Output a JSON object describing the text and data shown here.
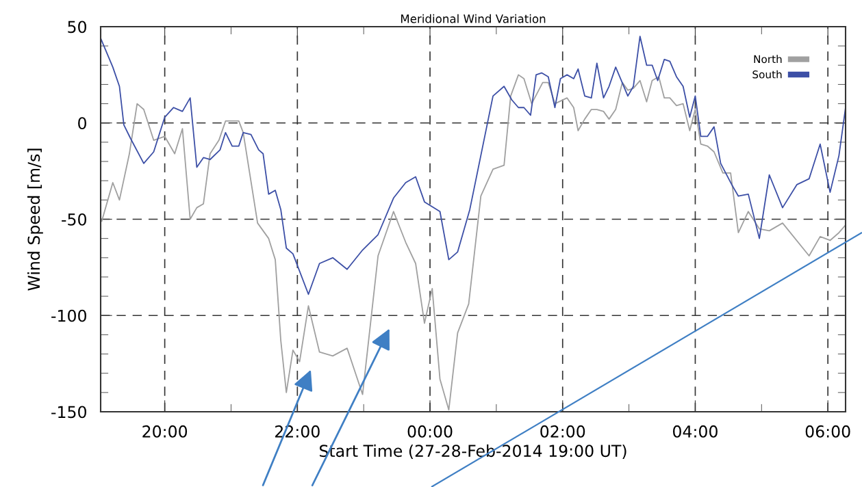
{
  "chart_data": {
    "type": "line",
    "title": "Meridional Wind Variation",
    "xlabel": "Start Time (27-28-Feb-2014 19:00 UT)",
    "ylabel": "Wind Speed [m/s]",
    "xlim": [
      "2014-02-27T19:02",
      "2014-02-28T06:16"
    ],
    "ylim": [
      -150,
      50
    ],
    "xticks": [
      {
        "value": "2014-02-27T20:00",
        "label": "20:00"
      },
      {
        "value": "2014-02-27T21:00",
        "label": null
      },
      {
        "value": "2014-02-27T22:00",
        "label": "22:00"
      },
      {
        "value": "2014-02-27T23:00",
        "label": null
      },
      {
        "value": "2014-02-28T00:00",
        "label": "00:00"
      },
      {
        "value": "2014-02-28T01:00",
        "label": null
      },
      {
        "value": "2014-02-28T02:00",
        "label": "02:00"
      },
      {
        "value": "2014-02-28T03:00",
        "label": null
      },
      {
        "value": "2014-02-28T04:00",
        "label": "04:00"
      },
      {
        "value": "2014-02-28T05:00",
        "label": null
      },
      {
        "value": "2014-02-28T06:00",
        "label": "06:00"
      }
    ],
    "yticks": [
      -150,
      {
        "value": -140,
        "label": null
      },
      {
        "value": -130,
        "label": null
      },
      {
        "value": -120,
        "label": null
      },
      {
        "value": -110,
        "label": null
      },
      -100,
      {
        "value": -90,
        "label": null
      },
      {
        "value": -80,
        "label": null
      },
      {
        "value": -70,
        "label": null
      },
      {
        "value": -60,
        "label": null
      },
      -50,
      {
        "value": -40,
        "label": null
      },
      {
        "value": -30,
        "label": null
      },
      {
        "value": -20,
        "label": null
      },
      {
        "value": -10,
        "label": null
      },
      0,
      {
        "value": 10,
        "label": null
      },
      {
        "value": 20,
        "label": null
      },
      {
        "value": 30,
        "label": null
      },
      {
        "value": 40,
        "label": null
      },
      50
    ],
    "grid": true,
    "legend": "top right",
    "marker": "none",
    "line_style": "solid",
    "series": [
      {
        "name": "North",
        "color": "#a0a0a0",
        "x": [
          "2014-02-27T19:03",
          "2014-02-27T19:13",
          "2014-02-27T19:19",
          "2014-02-27T19:28",
          "2014-02-27T19:35",
          "2014-02-27T19:41",
          "2014-02-27T19:50",
          "2014-02-27T20:00",
          "2014-02-27T20:09",
          "2014-02-27T20:16",
          "2014-02-27T20:23",
          "2014-02-27T20:29",
          "2014-02-27T20:35",
          "2014-02-27T20:41",
          "2014-02-27T20:49",
          "2014-02-27T20:55",
          "2014-02-27T21:01",
          "2014-02-27T21:07",
          "2014-02-27T21:11",
          "2014-02-27T21:24",
          "2014-02-27T21:34",
          "2014-02-27T21:40",
          "2014-02-27T21:45",
          "2014-02-27T21:50",
          "2014-02-27T21:56",
          "2014-02-27T22:02",
          "2014-02-27T22:10",
          "2014-02-27T22:20",
          "2014-02-27T22:32",
          "2014-02-27T22:45",
          "2014-02-27T22:59",
          "2014-02-27T23:13",
          "2014-02-27T23:27",
          "2014-02-27T23:38",
          "2014-02-27T23:47",
          "2014-02-27T23:55",
          "2014-02-28T00:02",
          "2014-02-28T00:09",
          "2014-02-28T00:17",
          "2014-02-28T00:25",
          "2014-02-28T00:35",
          "2014-02-28T00:46",
          "2014-02-28T00:57",
          "2014-02-28T01:07",
          "2014-02-28T01:13",
          "2014-02-28T01:20",
          "2014-02-28T01:25",
          "2014-02-28T01:32",
          "2014-02-28T01:42",
          "2014-02-28T01:47",
          "2014-02-28T01:53",
          "2014-02-28T02:04",
          "2014-02-28T02:10",
          "2014-02-28T02:14",
          "2014-02-28T02:20",
          "2014-02-28T02:26",
          "2014-02-28T02:31",
          "2014-02-28T02:37",
          "2014-02-28T02:42",
          "2014-02-28T02:48",
          "2014-02-28T02:54",
          "2014-02-28T02:59",
          "2014-02-28T03:04",
          "2014-02-28T03:10",
          "2014-02-28T03:16",
          "2014-02-28T03:21",
          "2014-02-28T03:27",
          "2014-02-28T03:32",
          "2014-02-28T03:37",
          "2014-02-28T03:43",
          "2014-02-28T03:49",
          "2014-02-28T03:55",
          "2014-02-28T04:00",
          "2014-02-28T04:05",
          "2014-02-28T04:11",
          "2014-02-28T04:17",
          "2014-02-28T04:25",
          "2014-02-28T04:32",
          "2014-02-28T04:39",
          "2014-02-28T04:48",
          "2014-02-28T04:58",
          "2014-02-28T05:07",
          "2014-02-28T05:19",
          "2014-02-28T05:43",
          "2014-02-28T05:53",
          "2014-02-28T06:02",
          "2014-02-28T06:10",
          "2014-02-28T06:16"
        ],
        "values": [
          -51,
          -31,
          -40,
          -16,
          10,
          7,
          -9,
          -7,
          -16,
          -3,
          -50,
          -44,
          -42,
          -16,
          -9,
          1,
          1,
          1,
          -5,
          -52,
          -60,
          -71,
          -113,
          -140,
          -118,
          -124,
          -95,
          -119,
          -121,
          -117,
          -141,
          -69,
          -46,
          -62,
          -73,
          -104,
          -86,
          -133,
          -149,
          -109,
          -94,
          -38,
          -24,
          -22,
          14,
          25,
          23,
          10,
          21,
          21,
          10,
          13,
          8,
          -4,
          2,
          7,
          7,
          6,
          2,
          7,
          21,
          17,
          18,
          22,
          11,
          22,
          24,
          13,
          13,
          9,
          10,
          -4,
          7,
          -11,
          -12,
          -15,
          -26,
          -26,
          -57,
          -46,
          -55,
          -56,
          -52,
          -69,
          -59,
          -61,
          -57,
          -53
        ]
      },
      {
        "name": "South",
        "color": "#3c4fa6",
        "x": [
          "2014-02-27T19:02",
          "2014-02-27T19:13",
          "2014-02-27T19:19",
          "2014-02-27T19:23",
          "2014-02-27T19:29",
          "2014-02-27T19:41",
          "2014-02-27T19:50",
          "2014-02-27T20:00",
          "2014-02-27T20:08",
          "2014-02-27T20:16",
          "2014-02-27T20:23",
          "2014-02-27T20:29",
          "2014-02-27T20:35",
          "2014-02-27T20:41",
          "2014-02-27T20:50",
          "2014-02-27T20:55",
          "2014-02-27T21:01",
          "2014-02-27T21:07",
          "2014-02-27T21:11",
          "2014-02-27T21:18",
          "2014-02-27T21:25",
          "2014-02-27T21:29",
          "2014-02-27T21:34",
          "2014-02-27T21:40",
          "2014-02-27T21:45",
          "2014-02-27T21:50",
          "2014-02-27T21:56",
          "2014-02-27T22:10",
          "2014-02-27T22:20",
          "2014-02-27T22:32",
          "2014-02-27T22:45",
          "2014-02-27T22:59",
          "2014-02-27T23:13",
          "2014-02-27T23:27",
          "2014-02-27T23:38",
          "2014-02-27T23:47",
          "2014-02-27T23:55",
          "2014-02-28T00:09",
          "2014-02-28T00:17",
          "2014-02-28T00:25",
          "2014-02-28T00:36",
          "2014-02-28T00:57",
          "2014-02-28T01:07",
          "2014-02-28T01:14",
          "2014-02-28T01:20",
          "2014-02-28T01:25",
          "2014-02-28T01:31",
          "2014-02-28T01:36",
          "2014-02-28T01:41",
          "2014-02-28T01:47",
          "2014-02-28T01:53",
          "2014-02-28T01:58",
          "2014-02-28T02:04",
          "2014-02-28T02:10",
          "2014-02-28T02:14",
          "2014-02-28T02:20",
          "2014-02-28T02:26",
          "2014-02-28T02:31",
          "2014-02-28T02:37",
          "2014-02-28T02:42",
          "2014-02-28T02:48",
          "2014-02-28T02:59",
          "2014-02-28T03:04",
          "2014-02-28T03:10",
          "2014-02-28T03:16",
          "2014-02-28T03:21",
          "2014-02-28T03:26",
          "2014-02-28T03:32",
          "2014-02-28T03:37",
          "2014-02-28T03:43",
          "2014-02-28T03:49",
          "2014-02-28T03:55",
          "2014-02-28T04:00",
          "2014-02-28T04:05",
          "2014-02-28T04:11",
          "2014-02-28T04:17",
          "2014-02-28T04:23",
          "2014-02-28T04:33",
          "2014-02-28T04:39",
          "2014-02-28T04:48",
          "2014-02-28T04:58",
          "2014-02-28T05:07",
          "2014-02-28T05:19",
          "2014-02-28T05:32",
          "2014-02-28T05:43",
          "2014-02-28T05:53",
          "2014-02-28T06:02",
          "2014-02-28T06:10",
          "2014-02-28T06:16"
        ],
        "values": [
          44,
          29,
          19,
          -1,
          -8,
          -21,
          -15,
          3,
          8,
          6,
          13,
          -23,
          -18,
          -19,
          -14,
          -5,
          -12,
          -12,
          -5,
          -6,
          -14,
          -16,
          -37,
          -35,
          -45,
          -65,
          -68,
          -89,
          -73,
          -70,
          -76,
          -66,
          -58,
          -39,
          -31,
          -28,
          -41,
          -46,
          -71,
          -67,
          -45,
          14,
          19,
          12,
          8,
          8,
          4,
          25,
          26,
          24,
          8,
          23,
          25,
          23,
          28,
          14,
          13,
          31,
          13,
          19,
          29,
          14,
          19,
          45,
          30,
          30,
          22,
          33,
          32,
          24,
          19,
          3,
          14,
          -7,
          -7,
          -2,
          -21,
          -32,
          -38,
          -37,
          -60,
          -27,
          -44,
          -32,
          -29,
          -11,
          -36,
          -17,
          8
        ]
      }
    ]
  }
}
